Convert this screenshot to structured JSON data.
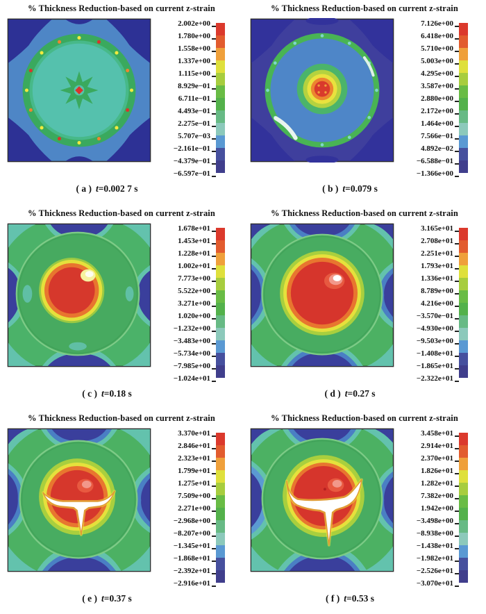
{
  "figure": {
    "title": "% Thickness Reduction-based on current z-strain",
    "t_symbol": "t",
    "colorbar_colors": [
      "#db392c",
      "#e25c2e",
      "#efa03b",
      "#dfe03c",
      "#a7cd3e",
      "#69bc45",
      "#53b14b",
      "#67ba85",
      "#8cc9bb",
      "#5a99d3",
      "#46509e",
      "#403e8c"
    ],
    "panels": [
      {
        "label": "( a )",
        "time": "=0.002 7 s",
        "legend": [
          "2.002e+00",
          "1.780e+00",
          "1.558e+00",
          "1.337e+00",
          "1.115e+00",
          "8.929e−01",
          "6.711e−01",
          "4.493e−01",
          "2.275e−01",
          "5.707e−03",
          "−2.161e−01",
          "−4.379e−01",
          "−6.597e−01"
        ]
      },
      {
        "label": "( b )",
        "time": "=0.079 s",
        "legend": [
          "7.126e+00",
          "6.418e+00",
          "5.710e+00",
          "5.003e+00",
          "4.295e+00",
          "3.587e+00",
          "2.880e+00",
          "2.172e+00",
          "1.464e+00",
          "7.566e−01",
          "4.892e−02",
          "−6.588e−01",
          "−1.366e+00"
        ]
      },
      {
        "label": "( c )",
        "time": "=0.18 s",
        "legend": [
          "1.678e+01",
          "1.453e+01",
          "1.228e+01",
          "1.002e+01",
          "7.773e+00",
          "5.522e+00",
          "3.271e+00",
          "1.020e+00",
          "−1.232e+00",
          "−3.483e+00",
          "−5.734e+00",
          "−7.985e+00",
          "−1.024e+01"
        ]
      },
      {
        "label": "( d )",
        "time": "=0.27 s",
        "legend": [
          "3.165e+01",
          "2.708e+01",
          "2.251e+01",
          "1.793e+01",
          "1.336e+01",
          "8.789e+00",
          "4.216e+00",
          "−3.570e−01",
          "−4.930e+00",
          "−9.503e+00",
          "−1.408e+01",
          "−1.865e+01",
          "−2.322e+01"
        ]
      },
      {
        "label": "( e )",
        "time": "=0.37 s",
        "legend": [
          "3.370e+01",
          "2.846e+01",
          "2.323e+01",
          "1.799e+01",
          "1.275e+01",
          "7.509e+00",
          "2.271e+00",
          "−2.968e+00",
          "−8.207e+00",
          "−1.345e+01",
          "−1.868e+01",
          "−2.392e+01",
          "−2.916e+01"
        ]
      },
      {
        "label": "( f )",
        "time": "=0.53 s",
        "legend": [
          "3.458e+01",
          "2.914e+01",
          "2.370e+01",
          "1.826e+01",
          "1.282e+01",
          "7.382e+00",
          "1.942e+00",
          "−3.498e+00",
          "−8.938e+00",
          "−1.438e+01",
          "−1.982e+01",
          "−2.526e+01",
          "−3.070e+01"
        ]
      }
    ]
  },
  "chart_data": [
    {
      "type": "heatmap",
      "subtype": "fea-contour",
      "panel": "a",
      "title": "% Thickness Reduction-based on current z-strain",
      "time_s": 0.0027,
      "legend_values": [
        2.002,
        1.78,
        1.558,
        1.337,
        1.115,
        0.8929,
        0.6711,
        0.4493,
        0.2275,
        0.005707,
        -0.2161,
        -0.4379,
        -0.6597
      ],
      "range": [
        -0.6597,
        2.002
      ],
      "legend_position": "right",
      "description": "square blank, blue field, navy corner lobes, teal circular die region ringed in green with yellow/orange/red speckles, small red spot at center of a green star"
    },
    {
      "type": "heatmap",
      "subtype": "fea-contour",
      "panel": "b",
      "title": "% Thickness Reduction-based on current z-strain",
      "time_s": 0.079,
      "legend_values": [
        7.126,
        6.418,
        5.71,
        5.003,
        4.295,
        3.587,
        2.88,
        2.172,
        1.464,
        0.7566,
        0.04892,
        -0.6588,
        -1.366
      ],
      "range": [
        -1.366,
        7.126
      ],
      "legend_position": "right",
      "description": "indigo field, steel-blue circular region, green speckled ring, concentric green/yellow/orange blob with red core at center"
    },
    {
      "type": "heatmap",
      "subtype": "fea-contour",
      "panel": "c",
      "title": "% Thickness Reduction-based on current z-strain",
      "time_s": 0.18,
      "legend_values": [
        16.78,
        14.53,
        12.28,
        10.02,
        7.773,
        5.522,
        3.271,
        1.02,
        -1.232,
        -3.483,
        -5.734,
        -7.985,
        -10.24
      ],
      "range": [
        -10.24,
        16.78
      ],
      "legend_position": "right",
      "description": "green field, navy lobes at edge midpoints with teal fringe, circular dome, red thinning blob with yellow rim and bright highlight"
    },
    {
      "type": "heatmap",
      "subtype": "fea-contour",
      "panel": "d",
      "title": "% Thickness Reduction-based on current z-strain",
      "time_s": 0.27,
      "legend_values": [
        31.65,
        27.08,
        22.51,
        17.93,
        13.36,
        8.789,
        4.216,
        -0.357,
        -4.93,
        -9.503,
        -14.08,
        -18.65,
        -23.22
      ],
      "range": [
        -23.22,
        31.65
      ],
      "legend_position": "right",
      "description": "green field, blue/navy edge lobes, large red dome centered with yellow-orange transition and specular highlight"
    },
    {
      "type": "heatmap",
      "subtype": "fea-contour",
      "panel": "e",
      "title": "% Thickness Reduction-based on current z-strain",
      "time_s": 0.37,
      "legend_values": [
        33.7,
        28.46,
        23.23,
        17.99,
        12.75,
        7.509,
        2.271,
        -2.968,
        -8.207,
        -13.45,
        -18.68,
        -23.92,
        -29.16
      ],
      "range": [
        -29.16,
        33.7
      ],
      "legend_position": "right",
      "description": "green field, red dome with white T-shaped failed (eroded) element zone across its middle with downward tail"
    },
    {
      "type": "heatmap",
      "subtype": "fea-contour",
      "panel": "f",
      "title": "% Thickness Reduction-based on current z-strain",
      "time_s": 0.53,
      "legend_values": [
        34.58,
        29.14,
        23.7,
        18.26,
        12.82,
        7.382,
        1.942,
        -3.498,
        -8.938,
        -14.38,
        -19.82,
        -25.26,
        -30.7
      ],
      "range": [
        -30.7,
        34.58
      ],
      "legend_position": "right",
      "description": "green field, red dome with enlarged white winged fracture zone and large triangular tail"
    }
  ]
}
